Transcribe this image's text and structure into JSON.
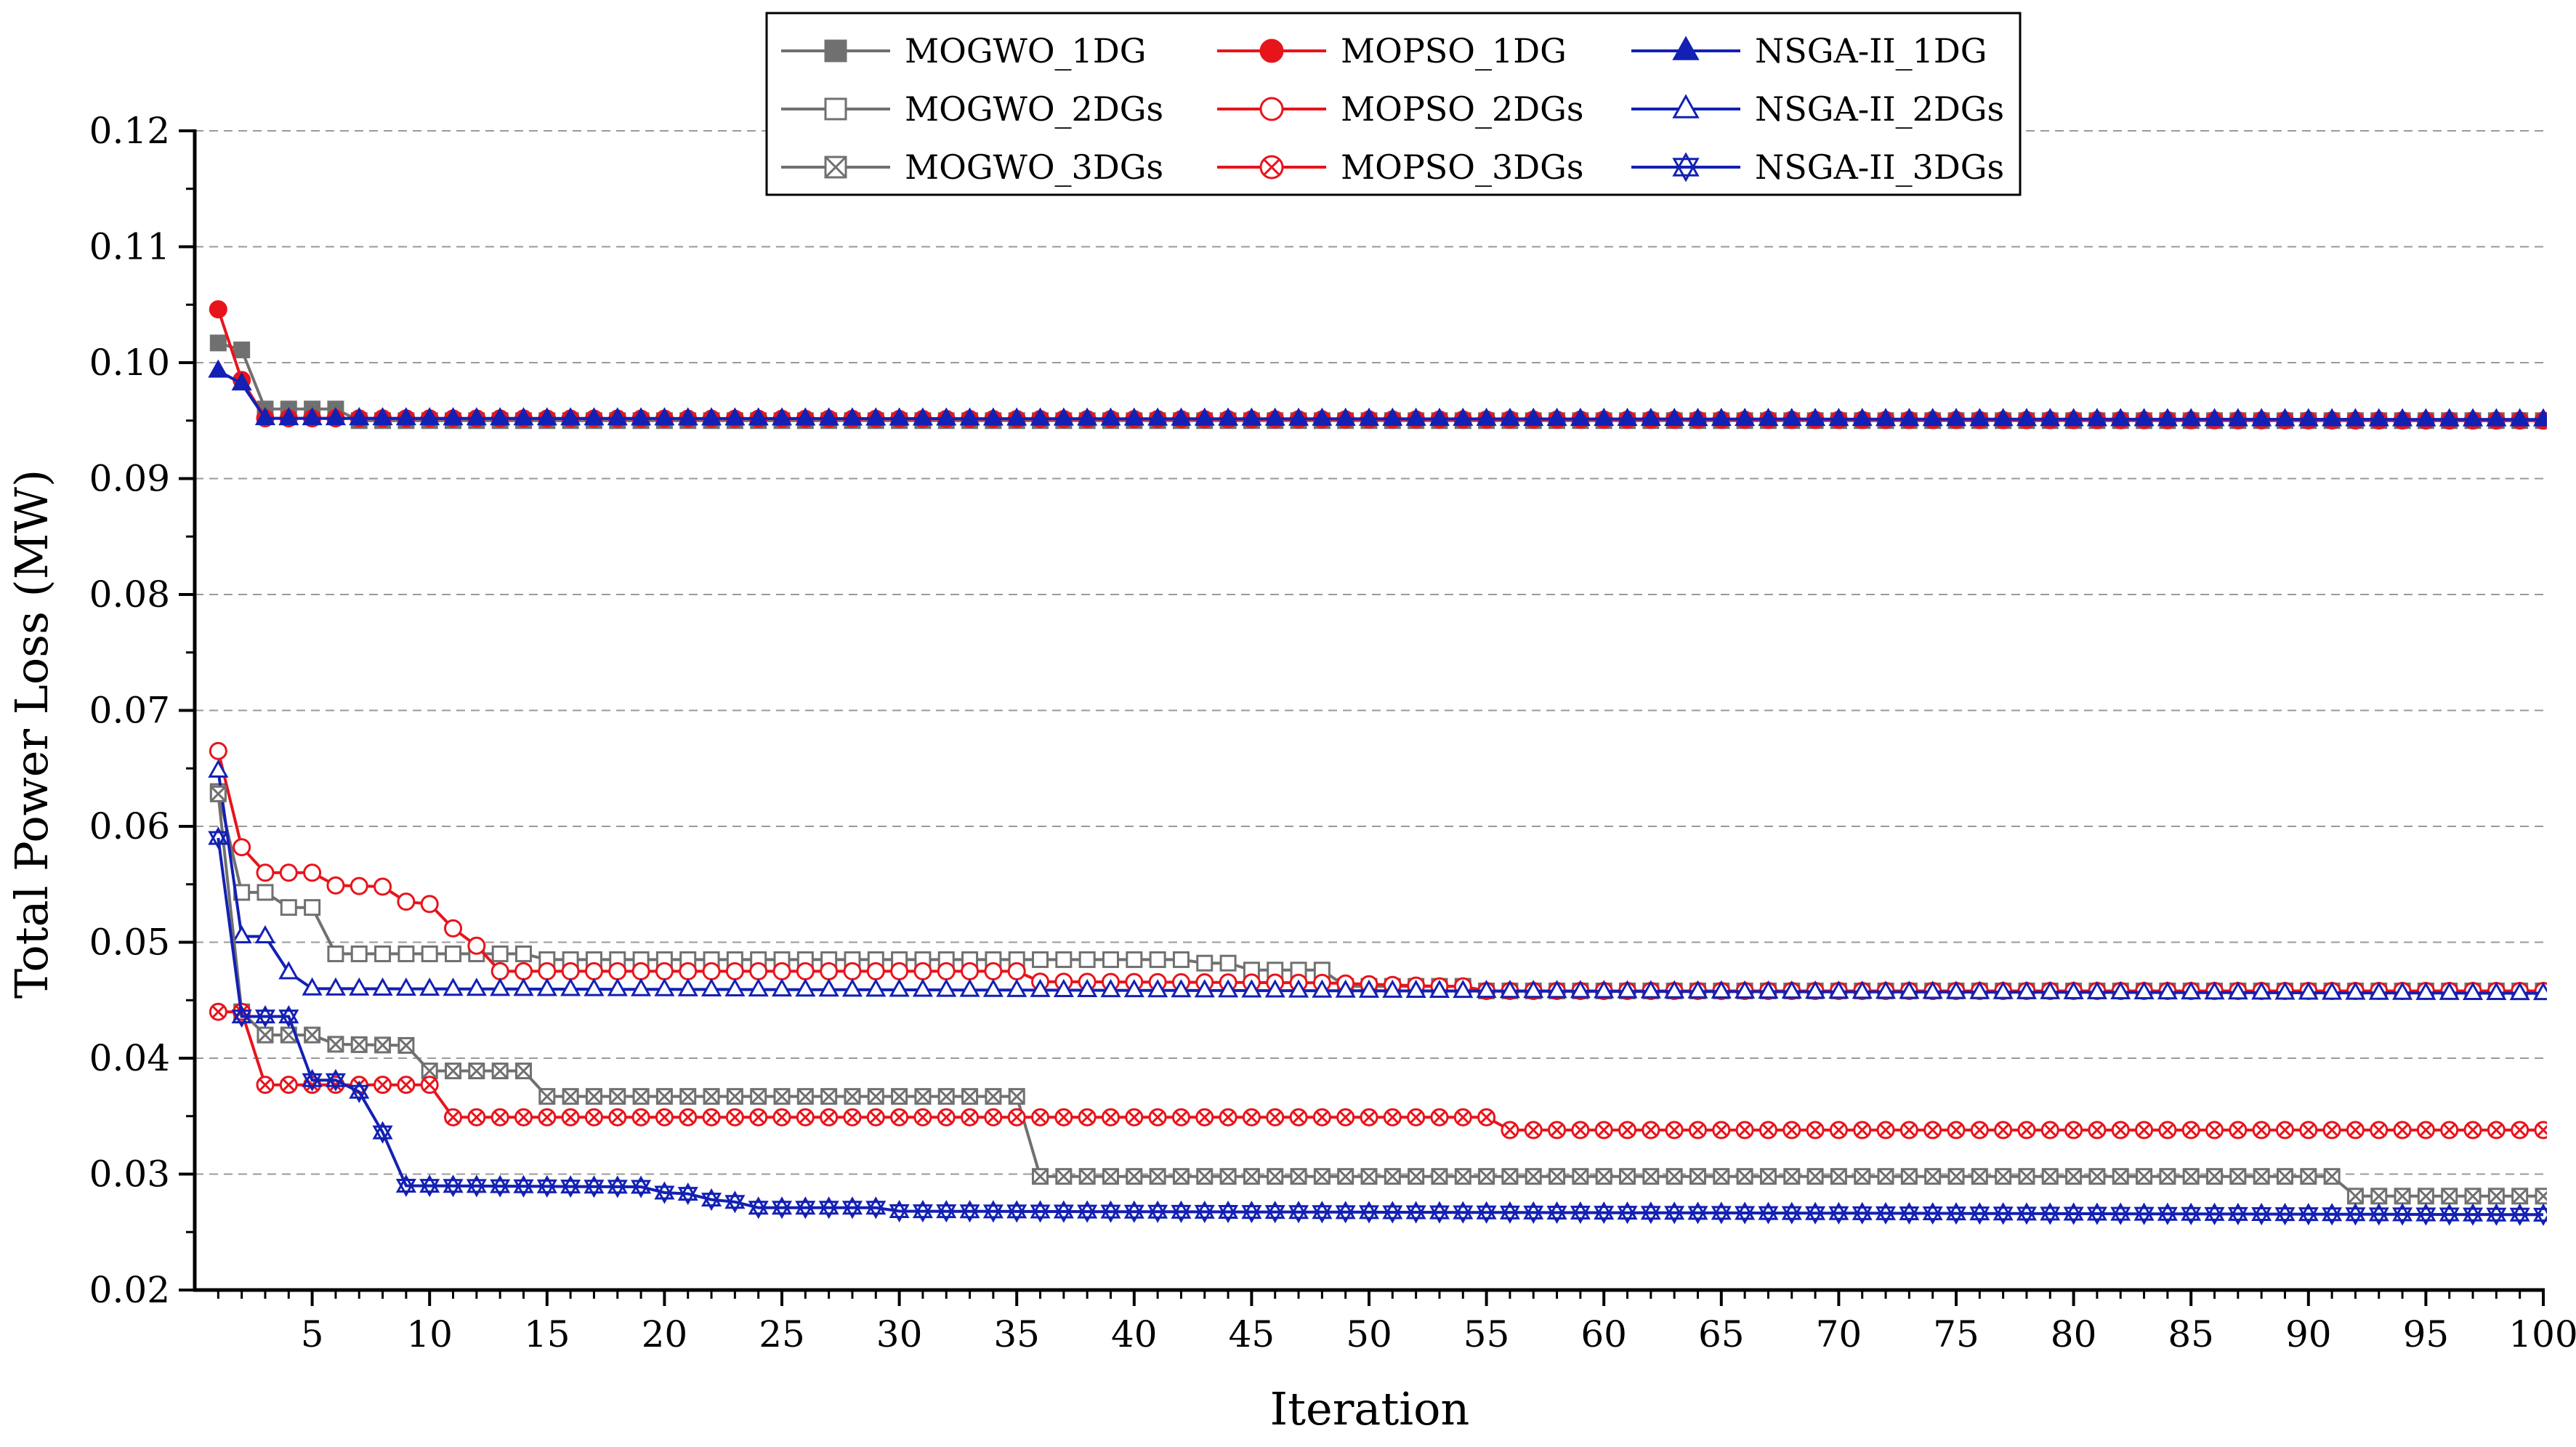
{
  "chart_data": {
    "type": "line",
    "title": "",
    "xlabel": "Iteration",
    "ylabel": "Total Power Loss (MW)",
    "xlim": [
      0,
      100
    ],
    "ylim": [
      0.02,
      0.12
    ],
    "x_ticks": [
      5,
      10,
      15,
      20,
      25,
      30,
      35,
      40,
      45,
      50,
      55,
      60,
      65,
      70,
      75,
      80,
      85,
      90,
      95,
      100
    ],
    "x_tick_labels": [
      "5",
      "10",
      "15",
      "20",
      "25",
      "30",
      "35",
      "40",
      "45",
      "50",
      "55",
      "60",
      "65",
      "70",
      "75",
      "80",
      "85",
      "90",
      "95",
      "100"
    ],
    "y_ticks": [
      0.02,
      0.03,
      0.04,
      0.05,
      0.06,
      0.07,
      0.08,
      0.09,
      0.1,
      0.11,
      0.12
    ],
    "y_tick_labels": [
      "0.02",
      "0.03",
      "0.04",
      "0.05",
      "0.06",
      "0.07",
      "0.08",
      "0.09",
      "0.10",
      "0.11",
      "0.12"
    ],
    "grid": "horizontal-dashed",
    "legend_position": "top-center",
    "colors": {
      "gray": "#707070",
      "red": "#e8141c",
      "blue": "#1320b4"
    },
    "series": [
      {
        "name": "MOGWO_1DG",
        "color": "#707070",
        "marker": "square-filled",
        "segments": [
          [
            1,
            0.1017
          ],
          [
            2,
            0.1011
          ],
          [
            3,
            0.096
          ],
          [
            6,
            0.096
          ],
          [
            7,
            0.095
          ],
          [
            100,
            0.095
          ]
        ]
      },
      {
        "name": "MOPSO_1DG",
        "color": "#e8141c",
        "marker": "circle-filled",
        "segments": [
          [
            1,
            0.1046
          ],
          [
            2,
            0.0985
          ],
          [
            3,
            0.0952
          ],
          [
            100,
            0.095
          ]
        ]
      },
      {
        "name": "NSGA-II_1DG",
        "color": "#1320b4",
        "marker": "triangle-filled",
        "segments": [
          [
            1,
            0.0993
          ],
          [
            2,
            0.0982
          ],
          [
            3,
            0.0952
          ],
          [
            100,
            0.0951
          ]
        ]
      },
      {
        "name": "MOGWO_2DGs",
        "color": "#707070",
        "marker": "square-open",
        "segments": [
          [
            1,
            0.063
          ],
          [
            2,
            0.0543
          ],
          [
            3,
            0.0543
          ],
          [
            4,
            0.053
          ],
          [
            5,
            0.053
          ],
          [
            6,
            0.049
          ],
          [
            14,
            0.049
          ],
          [
            15,
            0.0485
          ],
          [
            42,
            0.0485
          ],
          [
            43,
            0.0482
          ],
          [
            44,
            0.0482
          ],
          [
            45,
            0.0476
          ],
          [
            48,
            0.0476
          ],
          [
            49,
            0.0462
          ],
          [
            54,
            0.0462
          ],
          [
            55,
            0.0458
          ],
          [
            100,
            0.0458
          ]
        ]
      },
      {
        "name": "MOPSO_2DGs",
        "color": "#e8141c",
        "marker": "circle-open",
        "segments": [
          [
            1,
            0.0665
          ],
          [
            2,
            0.0582
          ],
          [
            3,
            0.056
          ],
          [
            5,
            0.056
          ],
          [
            6,
            0.0549
          ],
          [
            8,
            0.0548
          ],
          [
            9,
            0.0535
          ],
          [
            10,
            0.0533
          ],
          [
            11,
            0.0512
          ],
          [
            12,
            0.0497
          ],
          [
            13,
            0.0475
          ],
          [
            34,
            0.0475
          ],
          [
            35,
            0.0475
          ],
          [
            36,
            0.0466
          ],
          [
            48,
            0.0465
          ],
          [
            53,
            0.0462
          ],
          [
            54,
            0.0462
          ],
          [
            55,
            0.0458
          ],
          [
            100,
            0.0458
          ]
        ]
      },
      {
        "name": "NSGA-II_2DGs",
        "color": "#1320b4",
        "marker": "triangle-open",
        "segments": [
          [
            1,
            0.0648
          ],
          [
            2,
            0.0505
          ],
          [
            3,
            0.0505
          ],
          [
            4,
            0.0474
          ],
          [
            5,
            0.046
          ],
          [
            100,
            0.0456
          ]
        ]
      },
      {
        "name": "MOGWO_3DGs",
        "color": "#707070",
        "marker": "square-cross",
        "segments": [
          [
            1,
            0.0628
          ],
          [
            2,
            0.044
          ],
          [
            3,
            0.042
          ],
          [
            5,
            0.042
          ],
          [
            6,
            0.0412
          ],
          [
            9,
            0.0411
          ],
          [
            10,
            0.0389
          ],
          [
            14,
            0.0389
          ],
          [
            15,
            0.0367
          ],
          [
            35,
            0.0367
          ],
          [
            36,
            0.0298
          ],
          [
            91,
            0.0298
          ],
          [
            92,
            0.0281
          ],
          [
            100,
            0.0281
          ]
        ]
      },
      {
        "name": "MOPSO_3DGs",
        "color": "#e8141c",
        "marker": "circle-cross",
        "segments": [
          [
            1,
            0.044
          ],
          [
            2,
            0.044
          ],
          [
            3,
            0.0377
          ],
          [
            10,
            0.0377
          ],
          [
            11,
            0.0349
          ],
          [
            55,
            0.0349
          ],
          [
            56,
            0.0338
          ],
          [
            100,
            0.0338
          ]
        ]
      },
      {
        "name": "NSGA-II_3DGs",
        "color": "#1320b4",
        "marker": "asterisk",
        "segments": [
          [
            1,
            0.059
          ],
          [
            2,
            0.0436
          ],
          [
            3,
            0.0436
          ],
          [
            4,
            0.0436
          ],
          [
            5,
            0.0381
          ],
          [
            6,
            0.0381
          ],
          [
            7,
            0.0371
          ],
          [
            8,
            0.0336
          ],
          [
            9,
            0.029
          ],
          [
            19,
            0.0289
          ],
          [
            20,
            0.0284
          ],
          [
            21,
            0.0283
          ],
          [
            22,
            0.0278
          ],
          [
            23,
            0.0276
          ],
          [
            24,
            0.0271
          ],
          [
            29,
            0.0271
          ],
          [
            30,
            0.0268
          ],
          [
            100,
            0.0265
          ]
        ]
      }
    ]
  }
}
